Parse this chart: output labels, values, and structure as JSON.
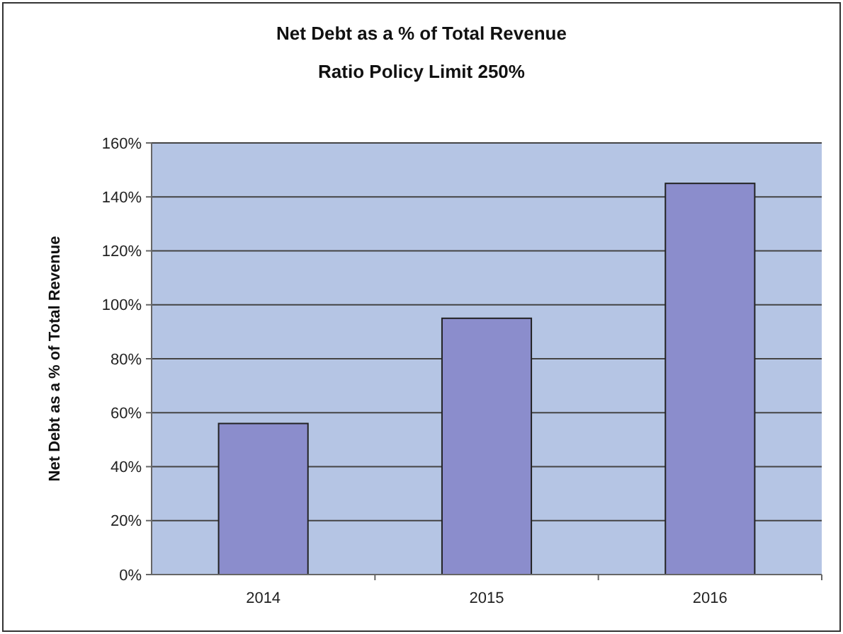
{
  "chart_data": {
    "type": "bar",
    "title": "Net Debt as a % of Total Revenue",
    "subtitle": "Ratio Policy Limit 250%",
    "ylabel": "Net Debt as a % of Total Revenue",
    "categories": [
      "2014",
      "2015",
      "2016"
    ],
    "values": [
      56,
      95,
      145
    ],
    "color": "#8b8dcc",
    "ylim": [
      0,
      160
    ],
    "yticks": [
      {
        "value": 0,
        "label": "0%"
      },
      {
        "value": 20,
        "label": "20%"
      },
      {
        "value": 40,
        "label": "40%"
      },
      {
        "value": 60,
        "label": "60%"
      },
      {
        "value": 80,
        "label": "80%"
      },
      {
        "value": 100,
        "label": "100%"
      },
      {
        "value": 120,
        "label": "120%"
      },
      {
        "value": 140,
        "label": "140%"
      },
      {
        "value": 160,
        "label": "160%"
      }
    ],
    "grid": "y"
  }
}
